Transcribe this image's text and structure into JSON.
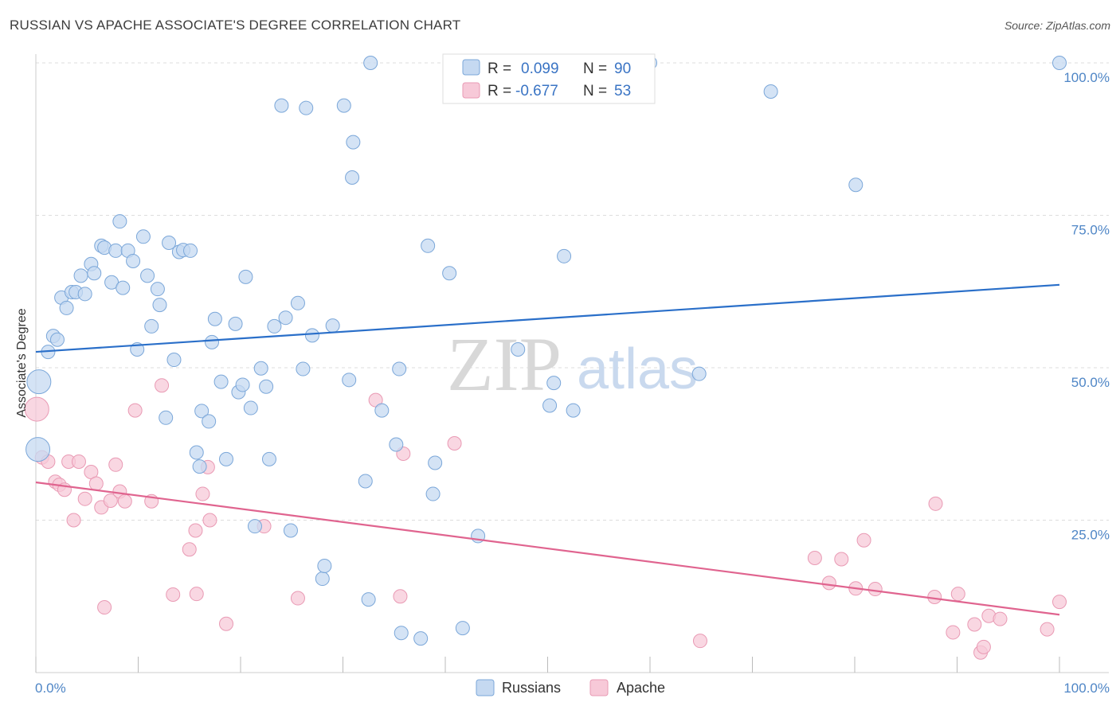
{
  "header": {
    "title": "RUSSIAN VS APACHE ASSOCIATE'S DEGREE CORRELATION CHART",
    "source": "Source: ZipAtlas.com"
  },
  "colors": {
    "blue_fill": "#c5d9f1",
    "blue_stroke": "#7ba7d9",
    "blue_line": "#2a6fc9",
    "pink_fill": "#f7c9d8",
    "pink_stroke": "#e99ab4",
    "pink_line": "#e0648f",
    "grid": "#dddddd",
    "axis_label": "#4f86c6"
  },
  "legend": {
    "r_label": "R =",
    "n_label": "N =",
    "russians": {
      "r": "0.099",
      "n": "90"
    },
    "apache": {
      "r": "-0.677",
      "n": "53"
    }
  },
  "bottom_legend": {
    "russians": "Russians",
    "apache": "Apache"
  },
  "watermark": {
    "zip": "ZIP",
    "atlas": "atlas"
  },
  "chart_data": {
    "type": "scatter",
    "title": "RUSSIAN VS APACHE ASSOCIATE'S DEGREE CORRELATION CHART",
    "xlabel": "",
    "ylabel": "Associate's Degree",
    "xlim": [
      0,
      100
    ],
    "ylim": [
      0,
      100
    ],
    "x_tick_labels": [
      "0.0%",
      "100.0%"
    ],
    "y_ticks": [
      25,
      50,
      75,
      100
    ],
    "y_tick_labels": [
      "25.0%",
      "50.0%",
      "75.0%",
      "100.0%"
    ],
    "grid": true,
    "series": [
      {
        "name": "Russians",
        "r": 0.099,
        "n": 90,
        "trend": {
          "x": [
            0,
            100
          ],
          "y": [
            52.6,
            63.6
          ]
        },
        "points": [
          [
            0.3,
            47.7
          ],
          [
            0.2,
            36.6
          ],
          [
            1.2,
            52.6
          ],
          [
            1.7,
            55.2
          ],
          [
            2.1,
            54.6
          ],
          [
            2.5,
            61.5
          ],
          [
            3.0,
            59.8
          ],
          [
            3.5,
            62.4
          ],
          [
            3.9,
            62.4
          ],
          [
            4.4,
            65.1
          ],
          [
            4.8,
            62.1
          ],
          [
            5.4,
            67.0
          ],
          [
            5.7,
            65.5
          ],
          [
            6.4,
            70.0
          ],
          [
            6.7,
            69.7
          ],
          [
            7.4,
            64.0
          ],
          [
            7.8,
            69.2
          ],
          [
            8.2,
            74.0
          ],
          [
            8.5,
            63.1
          ],
          [
            9.0,
            69.2
          ],
          [
            9.5,
            67.5
          ],
          [
            9.9,
            53.0
          ],
          [
            10.5,
            71.5
          ],
          [
            10.9,
            65.1
          ],
          [
            11.3,
            56.8
          ],
          [
            11.9,
            62.9
          ],
          [
            12.1,
            60.3
          ],
          [
            12.7,
            41.8
          ],
          [
            13.0,
            70.5
          ],
          [
            13.5,
            51.3
          ],
          [
            14.0,
            69.0
          ],
          [
            14.4,
            69.3
          ],
          [
            15.1,
            69.2
          ],
          [
            15.7,
            36.1
          ],
          [
            16.0,
            33.8
          ],
          [
            16.2,
            42.9
          ],
          [
            16.9,
            41.2
          ],
          [
            17.2,
            54.2
          ],
          [
            17.5,
            58.0
          ],
          [
            18.1,
            47.7
          ],
          [
            18.6,
            35.0
          ],
          [
            19.5,
            57.2
          ],
          [
            19.8,
            46.0
          ],
          [
            20.2,
            47.2
          ],
          [
            20.5,
            64.9
          ],
          [
            21.0,
            43.4
          ],
          [
            21.4,
            24.0
          ],
          [
            22.0,
            49.9
          ],
          [
            22.5,
            46.9
          ],
          [
            22.8,
            35.0
          ],
          [
            23.3,
            56.8
          ],
          [
            24.0,
            93.0
          ],
          [
            24.4,
            58.2
          ],
          [
            24.9,
            23.3
          ],
          [
            25.6,
            60.6
          ],
          [
            26.1,
            49.8
          ],
          [
            26.4,
            92.6
          ],
          [
            27.0,
            55.3
          ],
          [
            28.0,
            15.4
          ],
          [
            28.2,
            17.5
          ],
          [
            29.0,
            56.9
          ],
          [
            30.1,
            93.0
          ],
          [
            30.6,
            48.0
          ],
          [
            31.0,
            87.0
          ],
          [
            30.9,
            81.2
          ],
          [
            32.2,
            31.4
          ],
          [
            32.5,
            12.0
          ],
          [
            32.7,
            100
          ],
          [
            33.8,
            43.0
          ],
          [
            35.2,
            37.4
          ],
          [
            35.5,
            49.8
          ],
          [
            35.7,
            6.5
          ],
          [
            37.6,
            5.6
          ],
          [
            38.3,
            70.0
          ],
          [
            38.8,
            29.3
          ],
          [
            39.0,
            34.4
          ],
          [
            40.4,
            65.5
          ],
          [
            41.7,
            7.3
          ],
          [
            43.2,
            22.4
          ],
          [
            47.1,
            53.0
          ],
          [
            50.2,
            43.8
          ],
          [
            50.6,
            47.5
          ],
          [
            51.6,
            68.3
          ],
          [
            52.5,
            43.0
          ],
          [
            59.1,
            100
          ],
          [
            60.0,
            100
          ],
          [
            64.8,
            49.0
          ],
          [
            71.8,
            95.3
          ],
          [
            80.1,
            80.0
          ],
          [
            100,
            100
          ]
        ]
      },
      {
        "name": "Apache",
        "r": -0.677,
        "n": 53,
        "trend": {
          "x": [
            0,
            100
          ],
          "y": [
            31.2,
            9.5
          ]
        },
        "points": [
          [
            0.1,
            43.2
          ],
          [
            0.6,
            35.3
          ],
          [
            1.2,
            34.6
          ],
          [
            1.9,
            31.3
          ],
          [
            2.3,
            30.8
          ],
          [
            2.8,
            30.0
          ],
          [
            3.2,
            34.6
          ],
          [
            3.7,
            25.0
          ],
          [
            4.2,
            34.6
          ],
          [
            4.8,
            28.5
          ],
          [
            5.4,
            32.9
          ],
          [
            5.9,
            31.0
          ],
          [
            6.4,
            27.1
          ],
          [
            6.7,
            10.7
          ],
          [
            7.3,
            28.2
          ],
          [
            7.8,
            34.1
          ],
          [
            8.2,
            29.7
          ],
          [
            8.7,
            28.1
          ],
          [
            9.7,
            43.0
          ],
          [
            11.3,
            28.1
          ],
          [
            12.3,
            47.1
          ],
          [
            13.4,
            12.8
          ],
          [
            15.0,
            20.2
          ],
          [
            15.6,
            23.3
          ],
          [
            15.7,
            12.9
          ],
          [
            16.3,
            29.3
          ],
          [
            16.8,
            33.7
          ],
          [
            17.0,
            25.0
          ],
          [
            18.6,
            8.0
          ],
          [
            22.3,
            24.0
          ],
          [
            25.6,
            12.2
          ],
          [
            33.2,
            44.7
          ],
          [
            35.6,
            12.5
          ],
          [
            35.9,
            35.9
          ],
          [
            40.9,
            37.6
          ],
          [
            64.9,
            5.2
          ],
          [
            76.1,
            18.8
          ],
          [
            77.5,
            14.7
          ],
          [
            78.7,
            18.6
          ],
          [
            80.1,
            13.8
          ],
          [
            80.9,
            21.7
          ],
          [
            82.0,
            13.7
          ],
          [
            87.9,
            27.7
          ],
          [
            87.8,
            12.4
          ],
          [
            89.6,
            6.6
          ],
          [
            90.1,
            12.9
          ],
          [
            91.7,
            7.9
          ],
          [
            92.3,
            3.3
          ],
          [
            92.6,
            4.2
          ],
          [
            93.1,
            9.3
          ],
          [
            94.2,
            8.8
          ],
          [
            98.8,
            7.1
          ],
          [
            100,
            11.6
          ]
        ]
      }
    ]
  }
}
